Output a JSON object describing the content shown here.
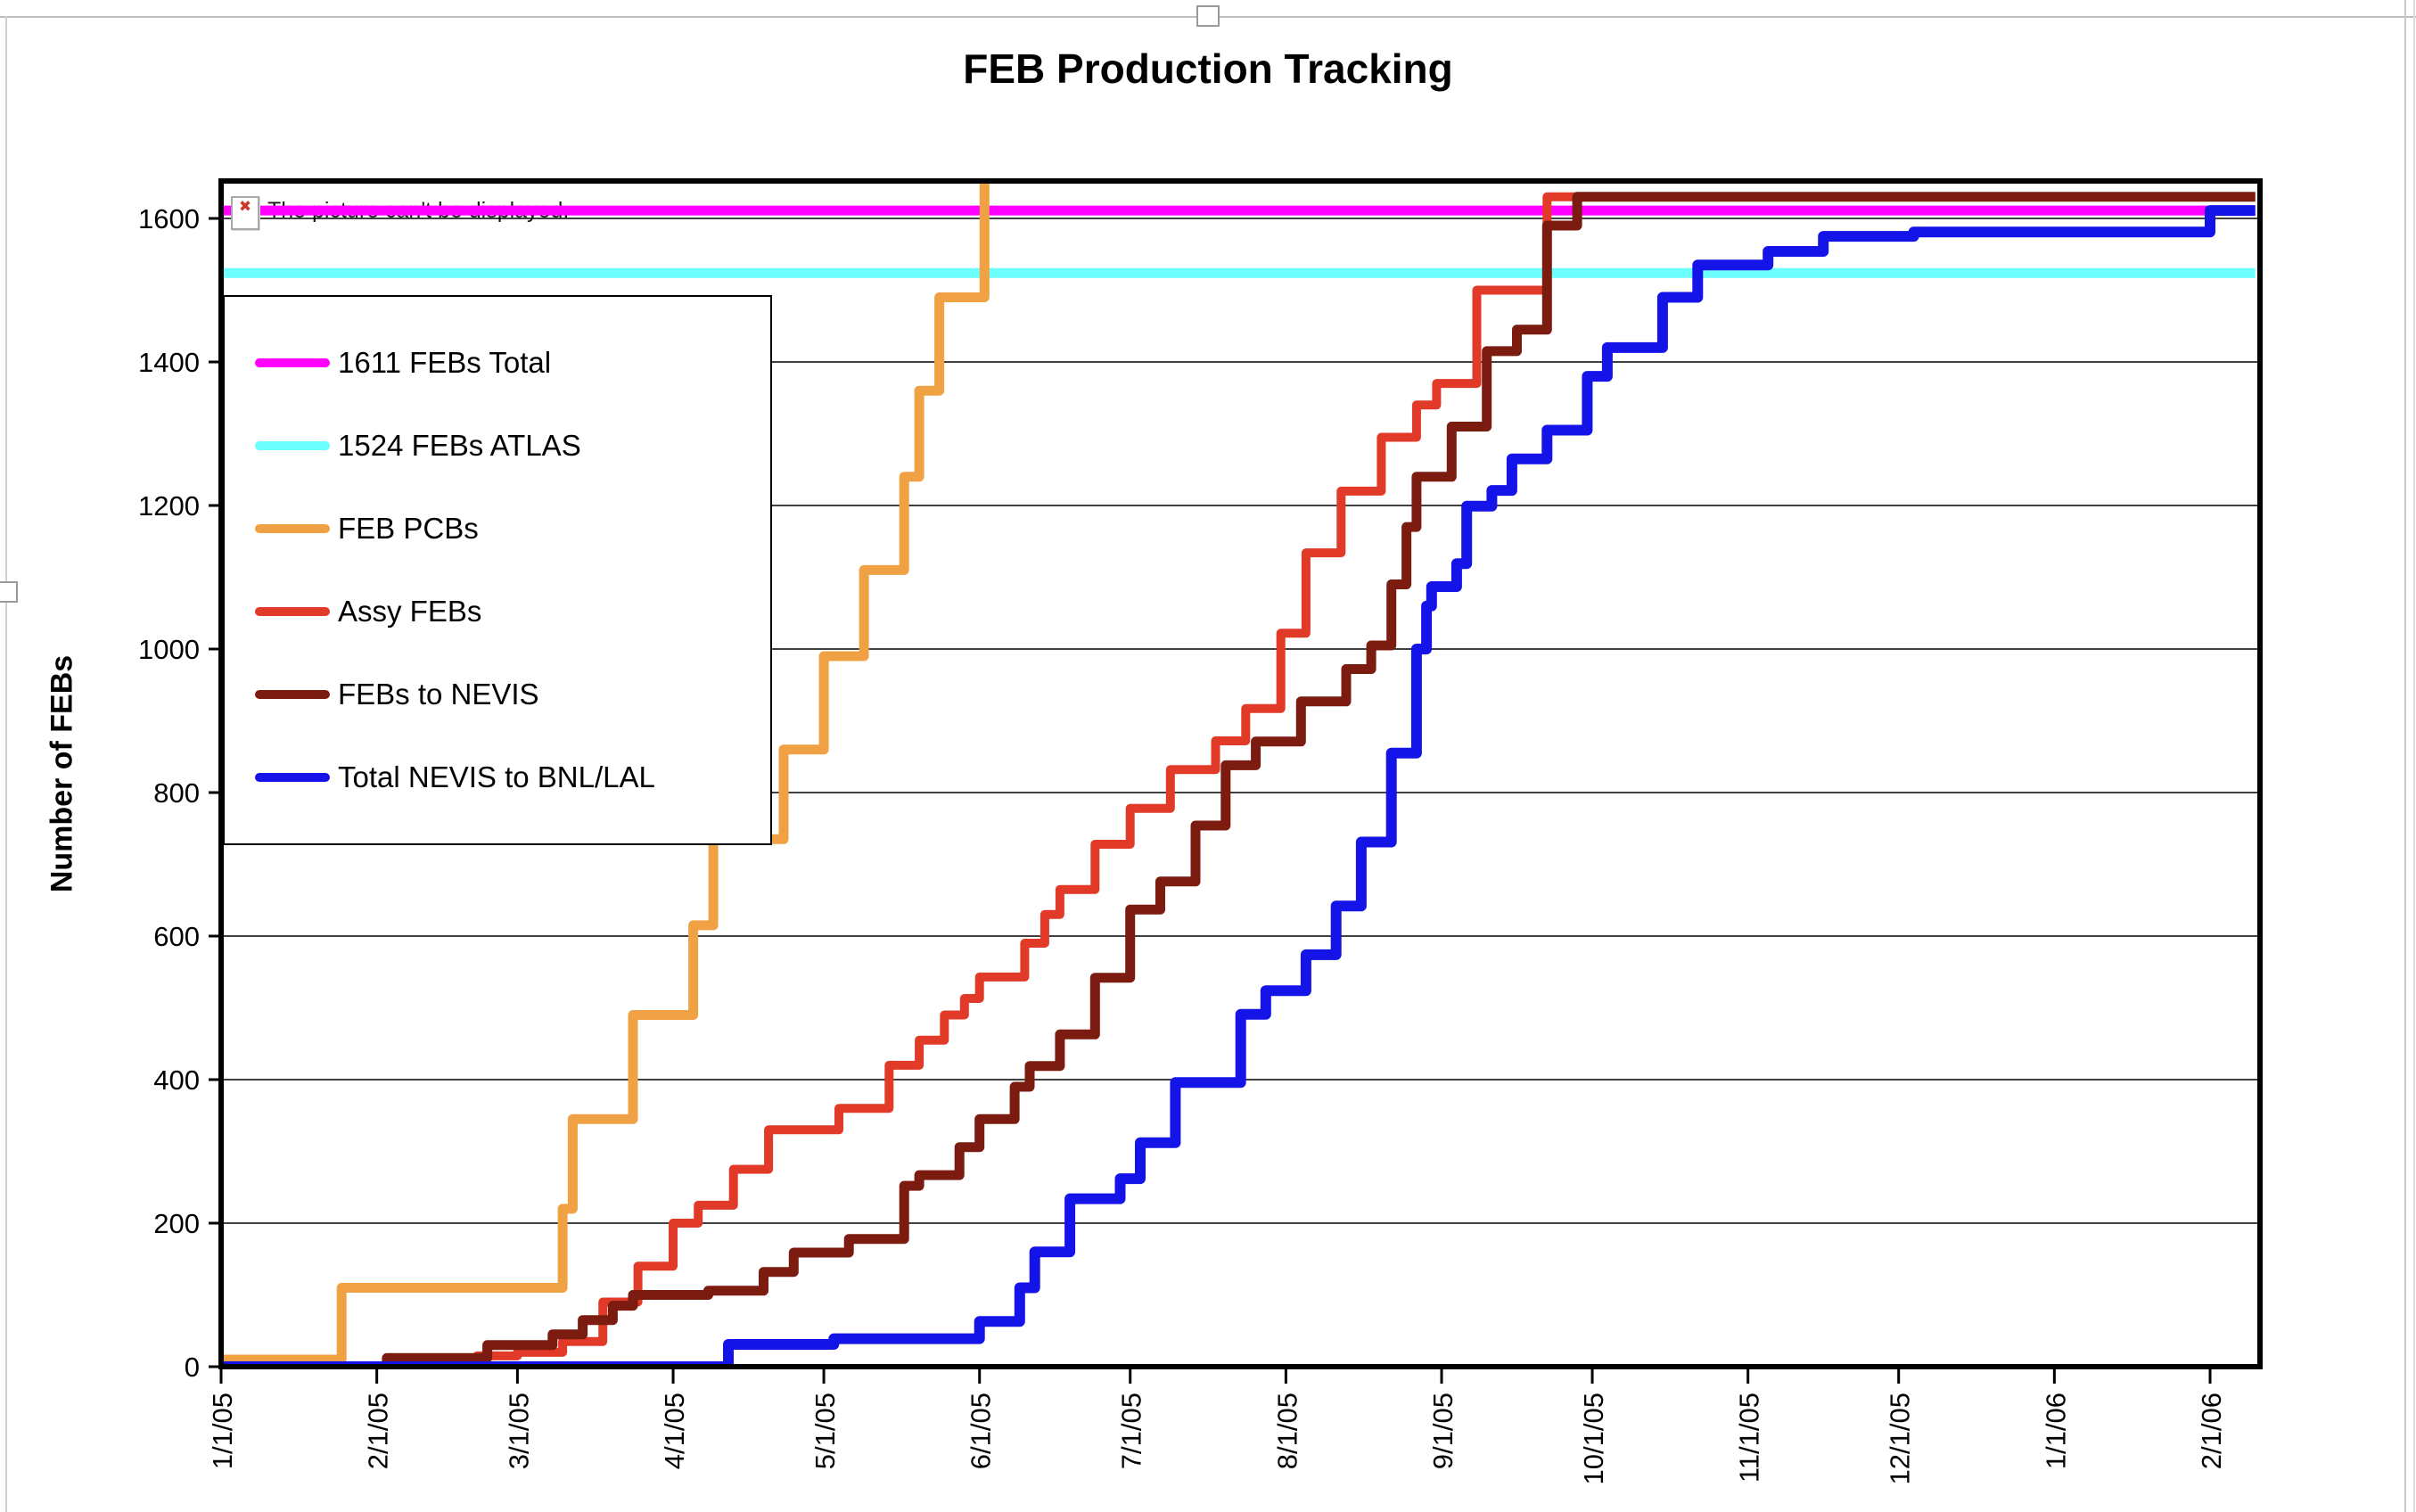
{
  "overlay": {
    "broken_image_text": "The picture can't be displayed.",
    "broken_image_icon": "x-icon"
  },
  "chart_data": {
    "type": "line",
    "title": "FEB Production Tracking",
    "ylabel": "Number of FEBs",
    "xlabel": "",
    "grid": "horizontal",
    "legend_position": "upper-left-inside",
    "ylim": [
      0,
      1652
    ],
    "y_ticks": [
      0,
      200,
      400,
      600,
      800,
      1000,
      1200,
      1400,
      1600
    ],
    "x_tick_labels": [
      "1/1/05",
      "2/1/05",
      "3/1/05",
      "4/1/05",
      "5/1/05",
      "6/1/05",
      "7/1/05",
      "8/1/05",
      "9/1/05",
      "10/1/05",
      "11/1/05",
      "12/1/05",
      "1/1/06",
      "2/1/06"
    ],
    "x_range_days": [
      0,
      406
    ],
    "series": [
      {
        "name": "1611 FEBs Total",
        "color": "#ff00ff",
        "style": "flat-reference",
        "points": [
          [
            "1/1/05",
            1611
          ],
          [
            "2/10/06",
            1611
          ]
        ]
      },
      {
        "name": "1524 FEBs ATLAS",
        "color": "#6cffff",
        "style": "flat-reference",
        "points": [
          [
            "1/1/05",
            1524
          ],
          [
            "2/10/06",
            1524
          ]
        ]
      },
      {
        "name": "FEB PCBs",
        "color": "#f0a143",
        "style": "step",
        "points": [
          [
            "1/1/05",
            10
          ],
          [
            "1/24/05",
            10
          ],
          [
            "1/25/05",
            110
          ],
          [
            "3/9/05",
            110
          ],
          [
            "3/10/05",
            220
          ],
          [
            "3/11/05",
            220
          ],
          [
            "3/12/05",
            345
          ],
          [
            "3/23/05",
            345
          ],
          [
            "3/24/05",
            490
          ],
          [
            "4/4/05",
            490
          ],
          [
            "4/5/05",
            615
          ],
          [
            "4/8/05",
            615
          ],
          [
            "4/9/05",
            735
          ],
          [
            "4/21/05",
            735
          ],
          [
            "4/23/05",
            860
          ],
          [
            "4/29/05",
            860
          ],
          [
            "5/1/05",
            990
          ],
          [
            "5/8/05",
            990
          ],
          [
            "5/9/05",
            1110
          ],
          [
            "5/16/05",
            1110
          ],
          [
            "5/17/05",
            1240
          ],
          [
            "5/19/05",
            1240
          ],
          [
            "5/20/05",
            1360
          ],
          [
            "5/23/05",
            1360
          ],
          [
            "5/24/05",
            1490
          ],
          [
            "5/31/05",
            1490
          ],
          [
            "6/2/05",
            1650
          ]
        ]
      },
      {
        "name": "Assy FEBs",
        "color": "#e23a28",
        "style": "step",
        "points": [
          [
            "1/1/05",
            0
          ],
          [
            "2/14/05",
            0
          ],
          [
            "2/21/05",
            15
          ],
          [
            "3/1/05",
            20
          ],
          [
            "3/10/05",
            35
          ],
          [
            "3/17/05",
            35
          ],
          [
            "3/18/05",
            90
          ],
          [
            "3/24/05",
            90
          ],
          [
            "3/25/05",
            140
          ],
          [
            "3/31/05",
            140
          ],
          [
            "4/1/05",
            200
          ],
          [
            "4/5/05",
            200
          ],
          [
            "4/6/05",
            225
          ],
          [
            "4/12/05",
            225
          ],
          [
            "4/13/05",
            275
          ],
          [
            "4/19/05",
            275
          ],
          [
            "4/20/05",
            330
          ],
          [
            "5/3/05",
            330
          ],
          [
            "5/4/05",
            360
          ],
          [
            "5/13/05",
            360
          ],
          [
            "5/14/05",
            420
          ],
          [
            "5/19/05",
            420
          ],
          [
            "5/20/05",
            455
          ],
          [
            "5/24/05",
            455
          ],
          [
            "5/25/05",
            490
          ],
          [
            "5/29/05",
            513
          ],
          [
            "6/1/05",
            543
          ],
          [
            "6/9/05",
            543
          ],
          [
            "6/10/05",
            590
          ],
          [
            "6/14/05",
            630
          ],
          [
            "6/17/05",
            665
          ],
          [
            "6/24/05",
            728
          ],
          [
            "7/1/05",
            778
          ],
          [
            "7/9/05",
            832
          ],
          [
            "7/18/05",
            872
          ],
          [
            "7/24/05",
            917
          ],
          [
            "7/31/05",
            1022
          ],
          [
            "8/5/05",
            1134
          ],
          [
            "8/12/05",
            1220
          ],
          [
            "8/20/05",
            1295
          ],
          [
            "8/27/05",
            1340
          ],
          [
            "8/31/05",
            1370
          ],
          [
            "9/8/05",
            1500
          ],
          [
            "9/21/05",
            1500
          ],
          [
            "9/22/05",
            1630
          ],
          [
            "2/10/06",
            1630
          ]
        ]
      },
      {
        "name": "FEBs to NEVIS",
        "color": "#7c1b10",
        "style": "step",
        "points": [
          [
            "1/1/05",
            0
          ],
          [
            "2/2/05",
            0
          ],
          [
            "2/3/05",
            12
          ],
          [
            "2/22/05",
            12
          ],
          [
            "2/23/05",
            30
          ],
          [
            "3/7/05",
            30
          ],
          [
            "3/8/05",
            45
          ],
          [
            "3/14/05",
            65
          ],
          [
            "3/20/05",
            85
          ],
          [
            "3/24/05",
            100
          ],
          [
            "4/8/05",
            106
          ],
          [
            "4/18/05",
            106
          ],
          [
            "4/19/05",
            132
          ],
          [
            "4/24/05",
            132
          ],
          [
            "4/25/05",
            159
          ],
          [
            "5/5/05",
            159
          ],
          [
            "5/6/05",
            178
          ],
          [
            "5/16/05",
            178
          ],
          [
            "5/17/05",
            252
          ],
          [
            "5/20/05",
            267
          ],
          [
            "5/27/05",
            267
          ],
          [
            "5/28/05",
            306
          ],
          [
            "5/31/05",
            306
          ],
          [
            "6/1/05",
            345
          ],
          [
            "6/7/05",
            345
          ],
          [
            "6/8/05",
            390
          ],
          [
            "6/11/05",
            419
          ],
          [
            "6/17/05",
            463
          ],
          [
            "6/24/05",
            542
          ],
          [
            "7/1/05",
            637
          ],
          [
            "7/7/05",
            676
          ],
          [
            "7/14/05",
            754
          ],
          [
            "7/20/05",
            838
          ],
          [
            "7/26/05",
            871
          ],
          [
            "8/3/05",
            871
          ],
          [
            "8/4/05",
            927
          ],
          [
            "8/12/05",
            927
          ],
          [
            "8/13/05",
            972
          ],
          [
            "8/18/05",
            1005
          ],
          [
            "8/22/05",
            1090
          ],
          [
            "8/25/05",
            1170
          ],
          [
            "8/27/05",
            1240
          ],
          [
            "9/3/05",
            1310
          ],
          [
            "9/10/05",
            1415
          ],
          [
            "9/16/05",
            1445
          ],
          [
            "9/21/05",
            1445
          ],
          [
            "9/22/05",
            1590
          ],
          [
            "9/28/05",
            1630
          ],
          [
            "2/10/06",
            1630
          ]
        ]
      },
      {
        "name": "Total NEVIS to BNL/LAL",
        "color": "#1414e8",
        "style": "step",
        "points": [
          [
            "1/1/05",
            0
          ],
          [
            "4/11/05",
            0
          ],
          [
            "4/12/05",
            31
          ],
          [
            "5/3/05",
            39
          ],
          [
            "5/31/05",
            39
          ],
          [
            "6/1/05",
            63
          ],
          [
            "6/8/05",
            63
          ],
          [
            "6/9/05",
            110
          ],
          [
            "6/12/05",
            160
          ],
          [
            "6/18/05",
            160
          ],
          [
            "6/19/05",
            234
          ],
          [
            "6/28/05",
            234
          ],
          [
            "6/29/05",
            262
          ],
          [
            "7/2/05",
            262
          ],
          [
            "7/3/05",
            312
          ],
          [
            "7/9/05",
            312
          ],
          [
            "7/10/05",
            396
          ],
          [
            "7/22/05",
            396
          ],
          [
            "7/23/05",
            491
          ],
          [
            "7/27/05",
            491
          ],
          [
            "7/28/05",
            524
          ],
          [
            "8/4/05",
            524
          ],
          [
            "8/5/05",
            574
          ],
          [
            "8/10/05",
            574
          ],
          [
            "8/11/05",
            642
          ],
          [
            "8/15/05",
            642
          ],
          [
            "8/16/05",
            731
          ],
          [
            "8/21/05",
            731
          ],
          [
            "8/22/05",
            855
          ],
          [
            "8/26/05",
            855
          ],
          [
            "8/27/05",
            1000
          ],
          [
            "8/29/05",
            1060
          ],
          [
            "8/30/05",
            1087
          ],
          [
            "9/3/05",
            1087
          ],
          [
            "9/4/05",
            1119
          ],
          [
            "9/5/05",
            1119
          ],
          [
            "9/6/05",
            1199
          ],
          [
            "9/10/05",
            1199
          ],
          [
            "9/11/05",
            1221
          ],
          [
            "9/14/05",
            1221
          ],
          [
            "9/15/05",
            1265
          ],
          [
            "9/21/05",
            1265
          ],
          [
            "9/22/05",
            1305
          ],
          [
            "9/29/05",
            1305
          ],
          [
            "9/30/05",
            1380
          ],
          [
            "10/3/05",
            1380
          ],
          [
            "10/4/05",
            1420
          ],
          [
            "10/14/05",
            1420
          ],
          [
            "10/15/05",
            1490
          ],
          [
            "10/21/05",
            1490
          ],
          [
            "10/22/05",
            1535
          ],
          [
            "11/4/05",
            1535
          ],
          [
            "11/5/05",
            1554
          ],
          [
            "11/15/05",
            1554
          ],
          [
            "11/16/05",
            1575
          ],
          [
            "12/3/05",
            1575
          ],
          [
            "12/4/05",
            1581
          ],
          [
            "1/31/06",
            1581
          ],
          [
            "2/1/06",
            1611
          ],
          [
            "2/10/06",
            1611
          ]
        ]
      }
    ]
  }
}
